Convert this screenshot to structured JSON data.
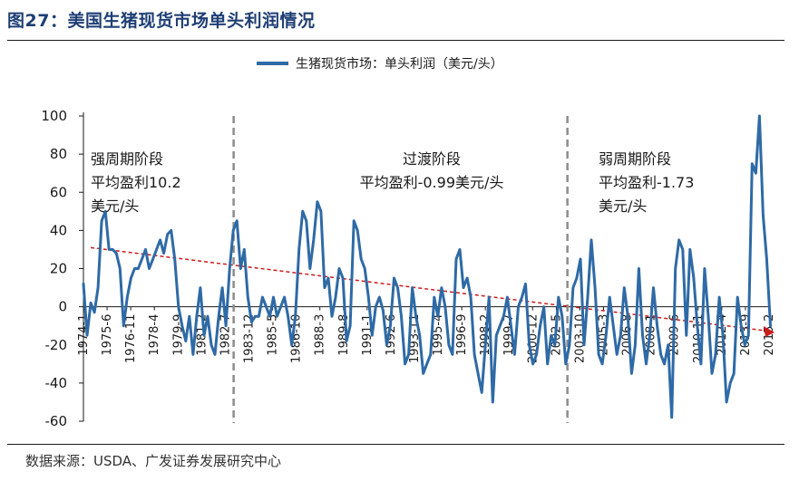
{
  "figure": {
    "title": "图27：美国生猪现货市场单头利润情况",
    "source": "数据来源：USDA、广发证券发展研究中心"
  },
  "colors": {
    "series": "#2e6aa6",
    "trend": "#cc1b1b",
    "divider": "#8c8c8c",
    "title": "#1f3f74"
  },
  "chart_data": {
    "type": "line",
    "title": "",
    "xlabel": "",
    "ylabel": "",
    "ylim": [
      -60,
      100
    ],
    "yticks": [
      100,
      80,
      60,
      40,
      20,
      0,
      -20,
      -40,
      -60
    ],
    "grid": false,
    "legend_position": "top-center",
    "x_tick_labels": [
      "1974-1",
      "1975-6",
      "1976-11",
      "1978-4",
      "1979-9",
      "1981-2",
      "1982-7",
      "1983-12",
      "1985-5",
      "1986-10",
      "1988-3",
      "1989-8",
      "1991-1",
      "1992-6",
      "1993-11",
      "1995-4",
      "1996-9",
      "1998-2",
      "1999-7",
      "2000-12",
      "2002-5",
      "2003-10",
      "2005-3",
      "2006-8",
      "2008-1",
      "2009-6",
      "2010-11",
      "2012-4",
      "2013-9",
      "2015-2"
    ],
    "series": [
      {
        "name": "生猪现货市场：单头利润（美元/头）",
        "x_start": "1974-1",
        "x_step": "quarterly",
        "values": [
          12,
          -15,
          2,
          -3,
          10,
          45,
          50,
          30,
          30,
          28,
          20,
          -10,
          5,
          15,
          20,
          20,
          25,
          30,
          20,
          25,
          30,
          35,
          28,
          38,
          40,
          25,
          0,
          -10,
          -18,
          -5,
          -25,
          -5,
          10,
          -15,
          -5,
          -20,
          -25,
          -5,
          10,
          -10,
          20,
          40,
          45,
          20,
          30,
          5,
          -8,
          -5,
          -5,
          5,
          0,
          -5,
          5,
          -5,
          0,
          5,
          -5,
          -20,
          -5,
          30,
          50,
          45,
          20,
          35,
          55,
          50,
          10,
          15,
          -5,
          5,
          20,
          15,
          -18,
          -10,
          45,
          40,
          25,
          20,
          5,
          -15,
          0,
          5,
          -2,
          -20,
          -10,
          15,
          10,
          -5,
          -30,
          -25,
          10,
          -5,
          -15,
          -35,
          -30,
          -25,
          5,
          -5,
          10,
          0,
          -20,
          -25,
          25,
          30,
          10,
          15,
          5,
          -25,
          -35,
          -45,
          -20,
          5,
          -50,
          -15,
          -10,
          -5,
          5,
          -10,
          -25,
          0,
          5,
          12,
          -20,
          -30,
          -25,
          -10,
          0,
          -30,
          -15,
          -20,
          5,
          -5,
          -30,
          -20,
          10,
          15,
          25,
          -20,
          5,
          35,
          10,
          -25,
          -30,
          -15,
          5,
          -10,
          -25,
          -15,
          10,
          -5,
          -35,
          -20,
          20,
          -15,
          -30,
          -15,
          10,
          -10,
          -25,
          -30,
          -20,
          -58,
          20,
          35,
          30,
          -15,
          30,
          15,
          -10,
          -30,
          20,
          -5,
          -35,
          -25,
          5,
          -15,
          -50,
          -40,
          -35,
          5,
          -10,
          -20,
          -15,
          75,
          70,
          100,
          48,
          25,
          -10
        ]
      },
      {
        "name": "trend",
        "from": {
          "x": "1974-1",
          "y": 31
        },
        "to": {
          "x": "2015-2",
          "y": -13
        }
      }
    ],
    "dividers": [
      "1983-1",
      "2003-1"
    ],
    "annotations": [
      {
        "lines": [
          "强周期阶段",
          "平均盈利10.2",
          "美元/头"
        ]
      },
      {
        "lines": [
          "过渡阶段",
          "平均盈利-0.99美元/头"
        ]
      },
      {
        "lines": [
          "弱周期阶段",
          "平均盈利-1.73",
          "美元/头"
        ]
      }
    ]
  }
}
